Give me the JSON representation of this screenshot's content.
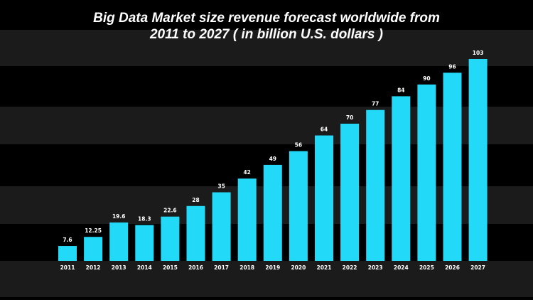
{
  "chart_data": {
    "type": "bar",
    "title_lines": [
      "Big Data Market size revenue forecast worldwide from",
      "2011 to 2027 ( in billion U.S. dollars )"
    ],
    "categories": [
      "2011",
      "2012",
      "2013",
      "2014",
      "2015",
      "2016",
      "2017",
      "2018",
      "2019",
      "2020",
      "2021",
      "2022",
      "2023",
      "2024",
      "2025",
      "2026",
      "2027"
    ],
    "values": [
      7.6,
      12.25,
      19.6,
      18.3,
      22.6,
      28,
      35,
      42,
      49,
      56,
      64,
      70,
      77,
      84,
      90,
      96,
      103
    ],
    "data_labels": [
      "7.6",
      "12.25",
      "19.6",
      "18.3",
      "22.6",
      "28",
      "35",
      "42",
      "49",
      "56",
      "64",
      "70",
      "77",
      "84",
      "90",
      "96",
      "103"
    ],
    "xlabel": "",
    "ylabel": "",
    "ylim": [
      0,
      103
    ],
    "grid": false,
    "legend": "none",
    "colors": {
      "bar": "#22d9f8",
      "background": "#000000",
      "band": "#1b1b1b",
      "text": "#ffffff"
    }
  }
}
